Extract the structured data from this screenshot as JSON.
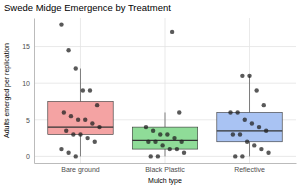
{
  "chart_data": {
    "type": "box",
    "title": "Swede Midge Emergence by Treatment",
    "x_label": "Mulch type",
    "y_label": "Adults emerged per replication",
    "categories": [
      "Bare ground",
      "Black Plastic",
      "Reflective"
    ],
    "colors": [
      "#f4a3a3",
      "#8fdc98",
      "#a9c3f3"
    ],
    "boxes": [
      {
        "low": 0,
        "q1": 3,
        "median": 4,
        "q3": 7.5,
        "high": 12
      },
      {
        "low": 0,
        "q1": 1,
        "median": 2.2,
        "q3": 4,
        "high": 6
      },
      {
        "low": 0,
        "q1": 2,
        "median": 3.5,
        "q3": 6,
        "high": 11
      }
    ],
    "points": [
      [
        18,
        14.5,
        12,
        9,
        9,
        7,
        6,
        5.5,
        5,
        5,
        4.5,
        4,
        3.5,
        3,
        3,
        2.5,
        2,
        1,
        0.5,
        0
      ],
      [
        17,
        6,
        4,
        3.5,
        3,
        3,
        2.5,
        2,
        2,
        2,
        1.5,
        1,
        1,
        0.5,
        0,
        0
      ],
      [
        11,
        11,
        9,
        7,
        6,
        6,
        5,
        4.5,
        4,
        3.5,
        3,
        3,
        2,
        1.5,
        1,
        0.5,
        0,
        0
      ]
    ],
    "ylim": [
      -0.9,
      18.9
    ],
    "yticks": [
      0,
      5,
      10,
      15
    ],
    "grid": true
  }
}
